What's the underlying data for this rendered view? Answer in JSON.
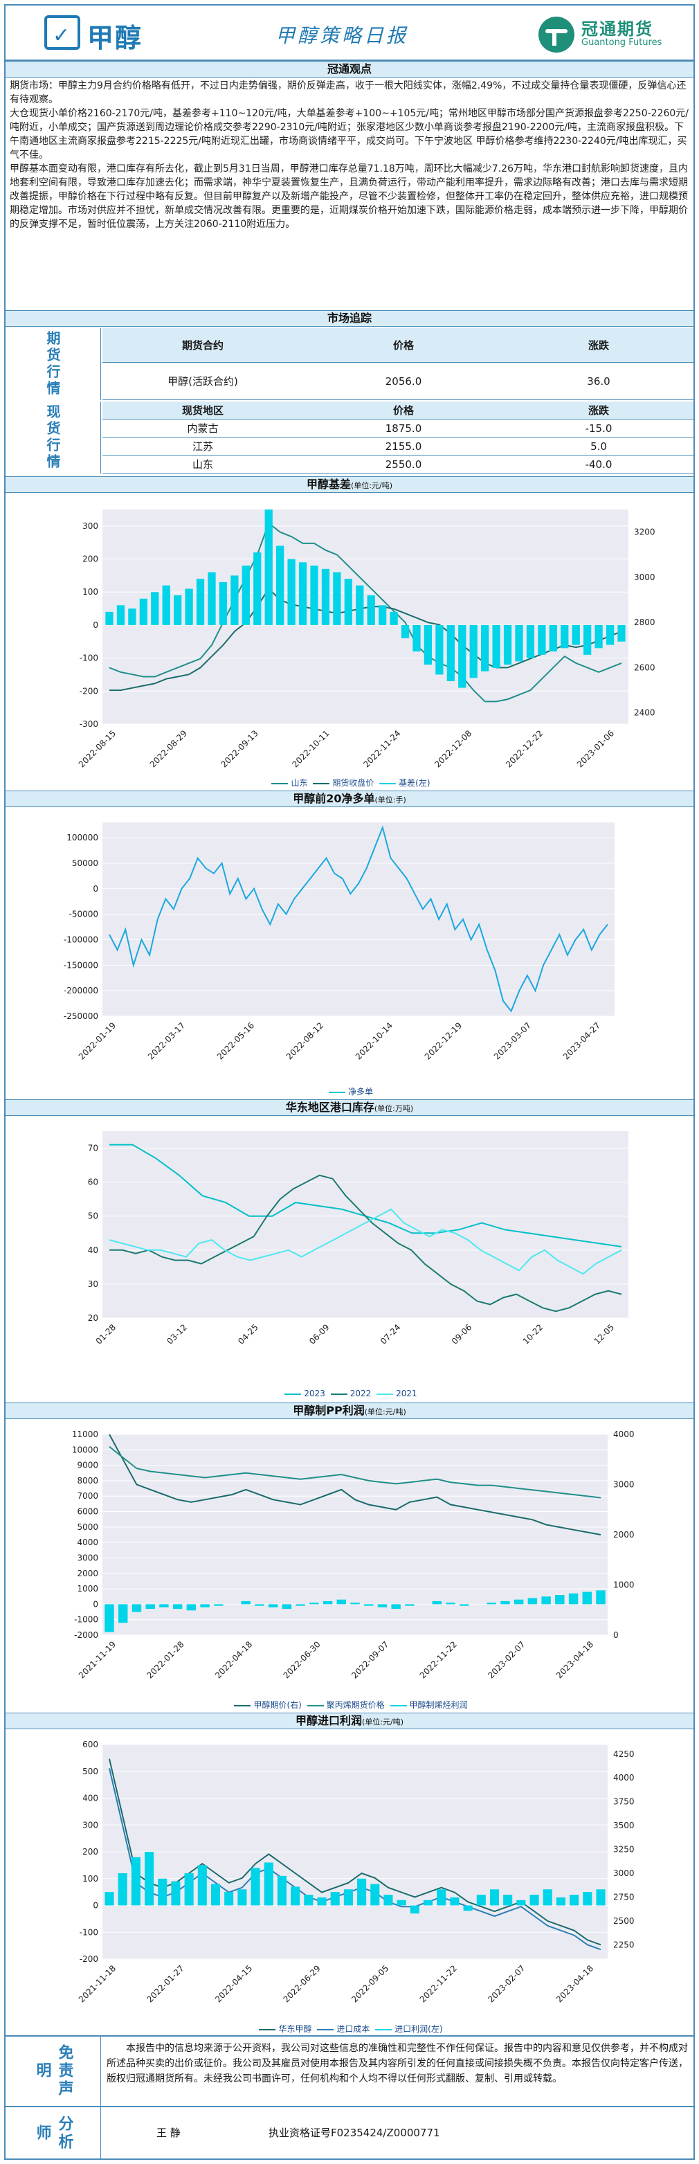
{
  "header": {
    "logo_text": "甲醇",
    "title": "甲醇策略日报",
    "brand_cn": "冠通期货",
    "brand_en": "Guantong Futures"
  },
  "sections": {
    "view_title": "冠通观点",
    "market_title": "市场追踪",
    "basis_title": "甲醇基差",
    "basis_unit": "(单位:元/吨)",
    "net_long_title": "甲醇前20净多单",
    "net_long_unit": "(单位:手)",
    "inventory_title": "华东地区港口库存",
    "inventory_unit": "(单位:万吨)",
    "pp_title": "甲醇制PP利润",
    "pp_unit": "(单位:元/吨)",
    "import_title": "甲醇进口利润",
    "import_unit": "(单位:元/吨)"
  },
  "view_text": "期货市场：甲醇主力9月合约价格略有低开，不过日内走势偏强，期价反弹走高，收于一根大阳线实体，涨幅2.49%，不过成交量持仓量表现僵硬，反弹信心还有待观察。\n大仓现货小单价格2160-2170元/吨，基差参考+110~120元/吨，大单基差参考+100~+105元/吨；常州地区甲醇市场部分国产货源报盘参考2250-2260元/吨附近，小单成交；国产货源送到周边理论价格成交参考2290-2310元/吨附近；张家港地区少数小单商谈参考报盘2190-2200元/吨，主流商家报盘积极。下午南通地区主流商家报盘参考2215-2225元/吨附近现汇出罐，市场商谈情绪平平，成交尚可。下午宁波地区 甲醇价格参考维持2230-2240元/吨出库现汇，买气不佳。\n甲醇基本面变动有限，港口库存有所去化，截止到5月31日当周，甲醇港口库存总量71.18万吨，周环比大幅减少7.26万吨，华东港口封航影响卸货速度，且内地套利空间有限，导致港口库存加速去化；而需求端，神华宁夏装置恢复生产，且满负荷运行，带动产能利用率提升，需求边际略有改善；港口去库与需求短期改善提振，甲醇价格在下行过程中略有反复。但目前甲醇复产以及新增产能投产，尽管不少装置检修，但整体开工率仍在稳定回升，整体供应充裕，进口规模预期稳定增加。市场对供应并不担忧，新单成交情况改善有限。更重要的是，近期煤炭价格开始加速下跌，国际能源价格走弱，成本端预示进一步下降，甲醇期价的反弹支撑不足，暂时低位震荡，上方关注2060-2110附近压力。",
  "futures": {
    "side_label": "期货行情",
    "headers": [
      "期货合约",
      "价格",
      "涨跌"
    ],
    "rows": [
      [
        "甲醇(活跃合约)",
        "2056.0",
        "36.0"
      ]
    ]
  },
  "spot": {
    "side_label": "现货行情",
    "headers": [
      "现货地区",
      "价格",
      "涨跌"
    ],
    "rows": [
      [
        "内蒙古",
        "1875.0",
        "-15.0"
      ],
      [
        "江苏",
        "2155.0",
        "5.0"
      ],
      [
        "山东",
        "2550.0",
        "-40.0"
      ]
    ]
  },
  "colors": {
    "teal": "#1f8f8a",
    "cyan": "#00d4e8",
    "dark_teal": "#1a6b6b",
    "blue": "#2a7fb8"
  },
  "chart_data": [
    {
      "type": "line",
      "title": "甲醇基差",
      "x_ticks": [
        "2022-08-15",
        "2022-08-29",
        "2022-09-13",
        "2022-10-11",
        "2022-11-24",
        "2022-12-08",
        "2022-12-22",
        "2023-01-06"
      ],
      "y_left_ticks": [
        "-300",
        "-200",
        "-100",
        "0",
        "100",
        "200",
        "300"
      ],
      "y_right_ticks": [
        "2400",
        "2600",
        "2800",
        "3000",
        "3200"
      ],
      "y_left_range": [
        -300,
        350
      ],
      "y_right_range": [
        2350,
        3300
      ],
      "series": [
        {
          "name": "山东",
          "axis": "right",
          "values": [
            2600,
            2580,
            2570,
            2560,
            2560,
            2580,
            2600,
            2620,
            2640,
            2700,
            2800,
            2900,
            3000,
            3100,
            3240,
            3200,
            3180,
            3150,
            3150,
            3120,
            3100,
            3050,
            3000,
            2950,
            2900,
            2850,
            2800,
            2700,
            2650,
            2620,
            2600,
            2560,
            2500,
            2450,
            2450,
            2460,
            2480,
            2500,
            2550,
            2600,
            2650,
            2620,
            2600,
            2580,
            2600,
            2620
          ]
        },
        {
          "name": "期货收盘价",
          "axis": "right",
          "values": [
            2500,
            2500,
            2510,
            2520,
            2530,
            2550,
            2560,
            2570,
            2600,
            2650,
            2700,
            2760,
            2800,
            2870,
            2950,
            2900,
            2880,
            2870,
            2860,
            2850,
            2840,
            2850,
            2860,
            2870,
            2870,
            2860,
            2840,
            2820,
            2800,
            2790,
            2750,
            2700,
            2660,
            2620,
            2600,
            2600,
            2620,
            2640,
            2660,
            2680,
            2700,
            2690,
            2700,
            2720,
            2740,
            2760
          ]
        },
        {
          "name": "基差(左)",
          "axis": "left",
          "values": [
            40,
            60,
            50,
            80,
            100,
            120,
            90,
            110,
            140,
            160,
            130,
            150,
            180,
            220,
            350,
            240,
            200,
            190,
            180,
            170,
            160,
            140,
            120,
            90,
            60,
            40,
            -40,
            -80,
            -120,
            -150,
            -170,
            -190,
            -160,
            -140,
            -130,
            -120,
            -110,
            -100,
            -90,
            -80,
            -70,
            -60,
            -90,
            -70,
            -60,
            -50
          ]
        }
      ],
      "legend": [
        "山东",
        "期货收盘价",
        "基差(左)"
      ]
    },
    {
      "type": "line",
      "title": "甲醇前20净多单",
      "x_ticks": [
        "2022-01-19",
        "2022-03-17",
        "2022-05-16",
        "2022-08-12",
        "2022-10-14",
        "2022-12-19",
        "2023-03-07",
        "2023-04-27"
      ],
      "y_ticks": [
        "-250000",
        "-200000",
        "-150000",
        "-100000",
        "-50000",
        "0",
        "50000",
        "100000"
      ],
      "y_range": [
        -250000,
        130000
      ],
      "series": [
        {
          "name": "净多单",
          "values": [
            -90000,
            -120000,
            -80000,
            -150000,
            -100000,
            -130000,
            -60000,
            -20000,
            -40000,
            0,
            20000,
            60000,
            40000,
            30000,
            50000,
            -10000,
            20000,
            -20000,
            0,
            -40000,
            -70000,
            -30000,
            -50000,
            -20000,
            0,
            20000,
            40000,
            60000,
            30000,
            20000,
            -10000,
            10000,
            40000,
            80000,
            120000,
            60000,
            40000,
            20000,
            -10000,
            -40000,
            -20000,
            -60000,
            -30000,
            -80000,
            -60000,
            -100000,
            -70000,
            -120000,
            -160000,
            -220000,
            -240000,
            -200000,
            -170000,
            -200000,
            -150000,
            -120000,
            -90000,
            -130000,
            -100000,
            -80000,
            -120000,
            -90000,
            -70000
          ]
        }
      ],
      "legend": [
        "净多单"
      ]
    },
    {
      "type": "line",
      "title": "华东地区港口库存",
      "x_ticks": [
        "01-28",
        "03-12",
        "04-25",
        "06-09",
        "07-24",
        "09-06",
        "10-22",
        "12-05"
      ],
      "y_ticks": [
        "20",
        "30",
        "40",
        "50",
        "60",
        "70"
      ],
      "y_range": [
        20,
        75
      ],
      "series": [
        {
          "name": "2023",
          "values": [
            71,
            71,
            67,
            62,
            56,
            54,
            50,
            50,
            54,
            53,
            52,
            50,
            48,
            45,
            45,
            46,
            48,
            46,
            45,
            44,
            43,
            42,
            41
          ]
        },
        {
          "name": "2022",
          "values": [
            40,
            40,
            39,
            40,
            38,
            37,
            37,
            36,
            38,
            40,
            42,
            44,
            50,
            55,
            58,
            60,
            62,
            61,
            56,
            52,
            48,
            45,
            42,
            40,
            36,
            33,
            30,
            28,
            25,
            24,
            26,
            27,
            25,
            23,
            22,
            23,
            25,
            27,
            28,
            27
          ]
        },
        {
          "name": "2021",
          "values": [
            43,
            42,
            41,
            40,
            40,
            39,
            38,
            42,
            43,
            40,
            38,
            37,
            38,
            39,
            40,
            38,
            40,
            42,
            44,
            46,
            48,
            50,
            52,
            48,
            46,
            44,
            46,
            45,
            43,
            40,
            38,
            36,
            34,
            38,
            40,
            37,
            35,
            33,
            36,
            38,
            40
          ]
        }
      ],
      "legend": [
        "2023",
        "2022",
        "2021"
      ]
    },
    {
      "type": "line",
      "title": "甲醇制PP利润",
      "x_ticks": [
        "2021-11-19",
        "2022-01-28",
        "2022-04-18",
        "2022-06-30",
        "2022-09-07",
        "2022-11-22",
        "2023-02-07",
        "2023-04-18"
      ],
      "y_left_ticks": [
        "-2000",
        "-1000",
        "0",
        "1000",
        "2000",
        "3000",
        "4000",
        "5000",
        "6000",
        "7000",
        "8000",
        "9000",
        "10000",
        "11000"
      ],
      "y_right_ticks": [
        "0",
        "1000",
        "2000",
        "3000",
        "4000"
      ],
      "y_left_range": [
        -2000,
        11000
      ],
      "y_right_range": [
        0,
        4000
      ],
      "series": [
        {
          "name": "甲醇期价(右)",
          "axis": "right",
          "values": [
            4000,
            3500,
            3000,
            2900,
            2800,
            2700,
            2650,
            2700,
            2750,
            2800,
            2900,
            2800,
            2700,
            2650,
            2600,
            2700,
            2800,
            2900,
            2700,
            2600,
            2550,
            2500,
            2650,
            2700,
            2750,
            2600,
            2550,
            2500,
            2450,
            2400,
            2350,
            2300,
            2200,
            2150,
            2100,
            2050,
            2000
          ]
        },
        {
          "name": "聚丙烯期货价格",
          "axis": "left",
          "values": [
            10200,
            9500,
            8800,
            8600,
            8500,
            8400,
            8300,
            8200,
            8300,
            8400,
            8500,
            8400,
            8300,
            8200,
            8100,
            8200,
            8300,
            8400,
            8200,
            8000,
            7900,
            7800,
            7900,
            8000,
            8100,
            7900,
            7800,
            7700,
            7700,
            7600,
            7500,
            7400,
            7300,
            7200,
            7100,
            7000,
            6900
          ]
        },
        {
          "name": "甲醇制烯烃利润",
          "axis": "left",
          "values": [
            -1800,
            -1200,
            -500,
            -300,
            -200,
            -300,
            -400,
            -200,
            -100,
            0,
            200,
            -100,
            -200,
            -300,
            -100,
            100,
            200,
            300,
            100,
            -100,
            -200,
            -300,
            -100,
            0,
            200,
            100,
            -100,
            0,
            100,
            200,
            300,
            400,
            500,
            600,
            700,
            800,
            900
          ]
        }
      ],
      "legend": [
        "甲醇期价(右)",
        "聚丙烯期货价格",
        "甲醇制烯烃利润"
      ]
    },
    {
      "type": "line",
      "title": "甲醇进口利润",
      "x_ticks": [
        "2021-11-18",
        "2022-01-27",
        "2022-04-15",
        "2022-06-29",
        "2022-09-05",
        "2022-11-22",
        "2023-02-07",
        "2023-04-18"
      ],
      "y_left_ticks": [
        "-200",
        "-100",
        "0",
        "100",
        "200",
        "300",
        "400",
        "500",
        "600"
      ],
      "y_right_ticks": [
        "2250",
        "2500",
        "2750",
        "3000",
        "3250",
        "3500",
        "3750",
        "4000",
        "4250"
      ],
      "y_left_range": [
        -200,
        600
      ],
      "y_right_range": [
        2100,
        4350
      ],
      "series": [
        {
          "name": "华东甲醇",
          "axis": "right",
          "values": [
            4200,
            3600,
            3000,
            2900,
            2850,
            2900,
            3000,
            3100,
            3000,
            2900,
            2950,
            3100,
            3200,
            3100,
            3000,
            2900,
            2800,
            2850,
            2900,
            3000,
            2950,
            2850,
            2800,
            2750,
            2800,
            2850,
            2800,
            2700,
            2650,
            2600,
            2650,
            2700,
            2600,
            2500,
            2450,
            2400,
            2300,
            2250
          ]
        },
        {
          "name": "进口成本",
          "axis": "right",
          "values": [
            4100,
            3500,
            2900,
            2800,
            2750,
            2800,
            2900,
            3000,
            2900,
            2800,
            2850,
            3000,
            3050,
            2950,
            2850,
            2750,
            2700,
            2750,
            2800,
            2850,
            2800,
            2700,
            2650,
            2650,
            2700,
            2750,
            2700,
            2650,
            2600,
            2550,
            2600,
            2650,
            2550,
            2450,
            2400,
            2350,
            2250,
            2200
          ]
        },
        {
          "name": "进口利润(左)",
          "axis": "left",
          "values": [
            50,
            120,
            180,
            200,
            100,
            90,
            120,
            150,
            80,
            50,
            60,
            140,
            160,
            110,
            70,
            40,
            30,
            50,
            60,
            100,
            80,
            40,
            20,
            -30,
            20,
            60,
            30,
            -20,
            40,
            60,
            40,
            20,
            40,
            60,
            30,
            40,
            50,
            60
          ]
        }
      ],
      "legend": [
        "华东甲醇",
        "进口成本",
        "进口利润(左)"
      ]
    }
  ],
  "disclaimer": {
    "label": "免责声明",
    "text": "本报告中的信息均来源于公开资料，我公司对这些信息的准确性和完整性不作任何保证。报告中的内容和意见仅供参考，并不构成对所述品种买卖的出价或征价。我公司及其雇员对使用本报告及其内容所引发的任何直接或间接损失概不负责。本报告仅向特定客户传送，版权归冠通期货所有。未经我公司书面许可，任何机构和个人均不得以任何形式翻版、复制、引用或转载。"
  },
  "analyst": {
    "label": "分析师",
    "name": "王  静",
    "license": "执业资格证号F0235424/Z0000771"
  }
}
